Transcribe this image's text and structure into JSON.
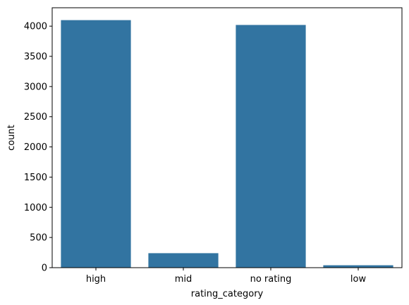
{
  "chart_data": {
    "type": "bar",
    "title": "",
    "xlabel": "rating_category",
    "ylabel": "count",
    "categories": [
      "high",
      "mid",
      "no rating",
      "low"
    ],
    "values": [
      4100,
      240,
      4020,
      40
    ],
    "ylim": [
      0,
      4305
    ],
    "yticks": [
      0,
      500,
      1000,
      1500,
      2000,
      2500,
      3000,
      3500,
      4000
    ],
    "grid": false,
    "legend": "none",
    "bar_color": "#3274a1",
    "axis_color": "#000000"
  }
}
